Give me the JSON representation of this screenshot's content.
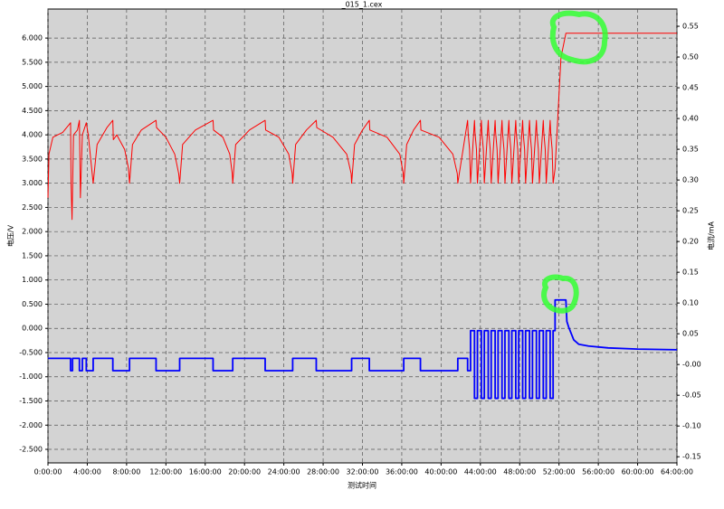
{
  "chart_data": {
    "type": "line",
    "title": "_015_1.cex",
    "x_label": "测试时间",
    "y_label": "电压/V",
    "y2_label": "电流/mA",
    "xlim": [
      0,
      64
    ],
    "xticks": [
      {
        "value": 0,
        "label": "0:00:00"
      },
      {
        "value": 4,
        "label": "4:00:00"
      },
      {
        "value": 8,
        "label": "8:00:00"
      },
      {
        "value": 12,
        "label": "12:00:00"
      },
      {
        "value": 16,
        "label": "16:00:00"
      },
      {
        "value": 20,
        "label": "20:00:00"
      },
      {
        "value": 24,
        "label": "24:00:00"
      },
      {
        "value": 28,
        "label": "28:00:00"
      },
      {
        "value": 32,
        "label": "32:00:00"
      },
      {
        "value": 36,
        "label": "36:00:00"
      },
      {
        "value": 40,
        "label": "40:00:00"
      },
      {
        "value": 44,
        "label": "44:00:00"
      },
      {
        "value": 48,
        "label": "48:00:00"
      },
      {
        "value": 52,
        "label": "52:00:00"
      },
      {
        "value": 56,
        "label": "56:00:00"
      },
      {
        "value": 60,
        "label": "60:00:00"
      },
      {
        "value": 64,
        "label": "64:00:00"
      }
    ],
    "ylim": [
      -2.78,
      6.6
    ],
    "yticks": [
      {
        "value": 6,
        "label": "6.000"
      },
      {
        "value": 5.5,
        "label": "5.500"
      },
      {
        "value": 5,
        "label": "5.000"
      },
      {
        "value": 4.5,
        "label": "4.500"
      },
      {
        "value": 4,
        "label": "4.000"
      },
      {
        "value": 3.5,
        "label": "3.500"
      },
      {
        "value": 3,
        "label": "3.000"
      },
      {
        "value": 2.5,
        "label": "2.500"
      },
      {
        "value": 2,
        "label": "2.000"
      },
      {
        "value": 1.5,
        "label": "1.500"
      },
      {
        "value": 1,
        "label": "1.000"
      },
      {
        "value": 0.5,
        "label": "0.500"
      },
      {
        "value": 0,
        "label": "0.000"
      },
      {
        "value": -0.5,
        "label": "-0.500"
      },
      {
        "value": -1,
        "label": "-1.000"
      },
      {
        "value": -1.5,
        "label": "-1.500"
      },
      {
        "value": -2,
        "label": "-2.000"
      },
      {
        "value": -2.5,
        "label": "-2.500"
      }
    ],
    "y2lim": [
      -0.16,
      0.578
    ],
    "y2ticks": [
      {
        "value": 0.55,
        "label": "0.55"
      },
      {
        "value": 0.5,
        "label": "0.50"
      },
      {
        "value": 0.45,
        "label": "0.45"
      },
      {
        "value": 0.4,
        "label": "0.40"
      },
      {
        "value": 0.35,
        "label": "0.35"
      },
      {
        "value": 0.3,
        "label": "0.30"
      },
      {
        "value": 0.25,
        "label": "0.25"
      },
      {
        "value": 0.2,
        "label": "0.20"
      },
      {
        "value": 0.15,
        "label": "0.15"
      },
      {
        "value": 0.1,
        "label": "0.10"
      },
      {
        "value": 0.05,
        "label": "0.05"
      },
      {
        "value": 0,
        "label": "-0.00"
      },
      {
        "value": -0.05,
        "label": "-0.05"
      },
      {
        "value": -0.1,
        "label": "-0.10"
      },
      {
        "value": -0.15,
        "label": "-0.15"
      }
    ],
    "grid": true,
    "series": [
      {
        "color": "#ff0000",
        "axis": "y",
        "x": [
          0,
          0.1,
          0.5,
          1.5,
          2.3,
          2.35,
          2.45,
          2.6,
          3.0,
          3.2,
          3.3,
          3.5,
          3.9,
          4.1,
          4.6,
          5.0,
          6.0,
          6.6,
          6.65,
          7.0,
          7.8,
          8.2,
          8.3,
          8.6,
          9.5,
          11.0,
          11.05,
          12.0,
          12.9,
          13.3,
          13.4,
          13.7,
          15.0,
          16.8,
          16.85,
          17.8,
          18.5,
          18.75,
          18.8,
          19.1,
          20.5,
          22.1,
          22.15,
          23.5,
          24.5,
          24.85,
          24.9,
          25.2,
          26.3,
          27.3,
          27.35,
          29.0,
          30.4,
          30.85,
          30.9,
          31.2,
          32.0,
          32.7,
          32.75,
          34.5,
          35.8,
          36.15,
          36.2,
          36.5,
          37.2,
          37.9,
          37.95,
          39.8,
          41.2,
          41.65,
          41.7,
          42.7,
          42.75,
          42.9,
          43.0,
          43.4,
          43.45,
          43.6,
          43.7,
          44.1,
          44.15,
          44.3,
          44.4,
          44.8,
          44.85,
          45.0,
          45.1,
          45.5,
          45.55,
          45.7,
          45.8,
          46.2,
          46.25,
          46.4,
          46.5,
          46.9,
          46.95,
          47.1,
          47.2,
          47.6,
          47.65,
          47.8,
          47.9,
          48.3,
          48.35,
          48.5,
          48.6,
          49.0,
          49.05,
          49.2,
          49.3,
          49.7,
          49.75,
          49.9,
          50.0,
          50.4,
          50.45,
          50.6,
          50.7,
          51.1,
          51.15,
          51.3,
          51.4,
          51.6,
          52.2,
          52.7,
          64
        ],
        "values": [
          2.7,
          3.6,
          3.95,
          4.05,
          4.25,
          3.0,
          2.25,
          4.0,
          4.1,
          4.3,
          2.7,
          4.0,
          4.25,
          4.0,
          3.0,
          3.8,
          4.15,
          4.3,
          3.9,
          4.0,
          3.7,
          3.3,
          3.0,
          3.8,
          4.1,
          4.3,
          4.15,
          3.95,
          3.6,
          3.2,
          3.0,
          3.8,
          4.1,
          4.3,
          4.1,
          3.95,
          3.6,
          3.2,
          3.0,
          3.8,
          4.1,
          4.3,
          4.1,
          3.95,
          3.6,
          3.2,
          3.0,
          3.8,
          4.1,
          4.3,
          4.15,
          3.95,
          3.6,
          3.2,
          3.0,
          3.8,
          4.1,
          4.3,
          4.1,
          3.95,
          3.6,
          3.2,
          3.0,
          3.8,
          4.1,
          4.3,
          4.1,
          3.95,
          3.6,
          3.2,
          3.0,
          4.3,
          4.05,
          3.7,
          3.0,
          4.3,
          4.05,
          3.7,
          3.0,
          4.3,
          4.05,
          3.7,
          3.0,
          4.3,
          4.05,
          3.7,
          3.0,
          4.3,
          4.05,
          3.7,
          3.0,
          4.3,
          4.05,
          3.7,
          3.0,
          4.3,
          4.05,
          3.7,
          3.0,
          4.3,
          4.05,
          3.7,
          3.0,
          4.3,
          4.05,
          3.7,
          3.0,
          4.3,
          4.05,
          3.7,
          3.0,
          4.3,
          4.05,
          3.7,
          3.0,
          4.3,
          4.05,
          3.7,
          3.0,
          4.3,
          4.05,
          3.7,
          3.0,
          3.3,
          5.6,
          6.1,
          6.1
        ]
      },
      {
        "color": "#0000ff",
        "axis": "y2",
        "x": [
          0,
          2.3,
          2.3,
          2.5,
          2.5,
          3.2,
          3.2,
          3.5,
          3.5,
          3.9,
          3.9,
          4.6,
          4.6,
          6.6,
          6.6,
          8.3,
          8.3,
          11.0,
          11.0,
          13.4,
          13.4,
          16.8,
          16.8,
          18.8,
          18.8,
          22.1,
          22.1,
          24.9,
          24.9,
          27.3,
          27.3,
          30.9,
          30.9,
          32.7,
          32.7,
          36.2,
          36.2,
          37.9,
          37.9,
          41.7,
          41.7,
          42.7,
          42.7,
          43.0,
          43.0,
          43.4,
          43.4,
          43.7,
          43.7,
          44.1,
          44.1,
          44.4,
          44.4,
          44.8,
          44.8,
          45.1,
          45.1,
          45.5,
          45.5,
          45.8,
          45.8,
          46.2,
          46.2,
          46.5,
          46.5,
          46.9,
          46.9,
          47.2,
          47.2,
          47.6,
          47.6,
          47.9,
          47.9,
          48.3,
          48.3,
          48.6,
          48.6,
          49.0,
          49.0,
          49.3,
          49.3,
          49.7,
          49.7,
          50.0,
          50.0,
          50.4,
          50.4,
          50.7,
          50.7,
          51.1,
          51.1,
          51.4,
          51.4,
          51.6,
          51.6,
          52.7,
          52.8,
          53.0,
          53.5,
          54.0,
          55.0,
          57.0,
          60.0,
          64.0
        ],
        "values": [
          0.01,
          0.01,
          -0.01,
          -0.01,
          0.01,
          0.01,
          -0.01,
          -0.01,
          0.01,
          0.01,
          -0.01,
          -0.01,
          0.01,
          0.01,
          -0.01,
          -0.01,
          0.01,
          0.01,
          -0.01,
          -0.01,
          0.01,
          0.01,
          -0.01,
          -0.01,
          0.01,
          0.01,
          -0.01,
          -0.01,
          0.01,
          0.01,
          -0.01,
          -0.01,
          0.01,
          0.01,
          -0.01,
          -0.01,
          0.01,
          0.01,
          -0.01,
          -0.01,
          0.01,
          0.01,
          -0.01,
          -0.01,
          0.055,
          0.055,
          -0.055,
          -0.055,
          0.055,
          0.055,
          -0.055,
          -0.055,
          0.055,
          0.055,
          -0.055,
          -0.055,
          0.055,
          0.055,
          -0.055,
          -0.055,
          0.055,
          0.055,
          -0.055,
          -0.055,
          0.055,
          0.055,
          -0.055,
          -0.055,
          0.055,
          0.055,
          -0.055,
          -0.055,
          0.055,
          0.055,
          -0.055,
          -0.055,
          0.055,
          0.055,
          -0.055,
          -0.055,
          0.055,
          0.055,
          -0.055,
          -0.055,
          0.055,
          0.055,
          -0.055,
          -0.055,
          0.055,
          0.055,
          -0.055,
          -0.055,
          0.055,
          0.055,
          0.105,
          0.105,
          0.07,
          0.06,
          0.04,
          0.033,
          0.03,
          0.027,
          0.025,
          0.024
        ]
      }
    ]
  }
}
